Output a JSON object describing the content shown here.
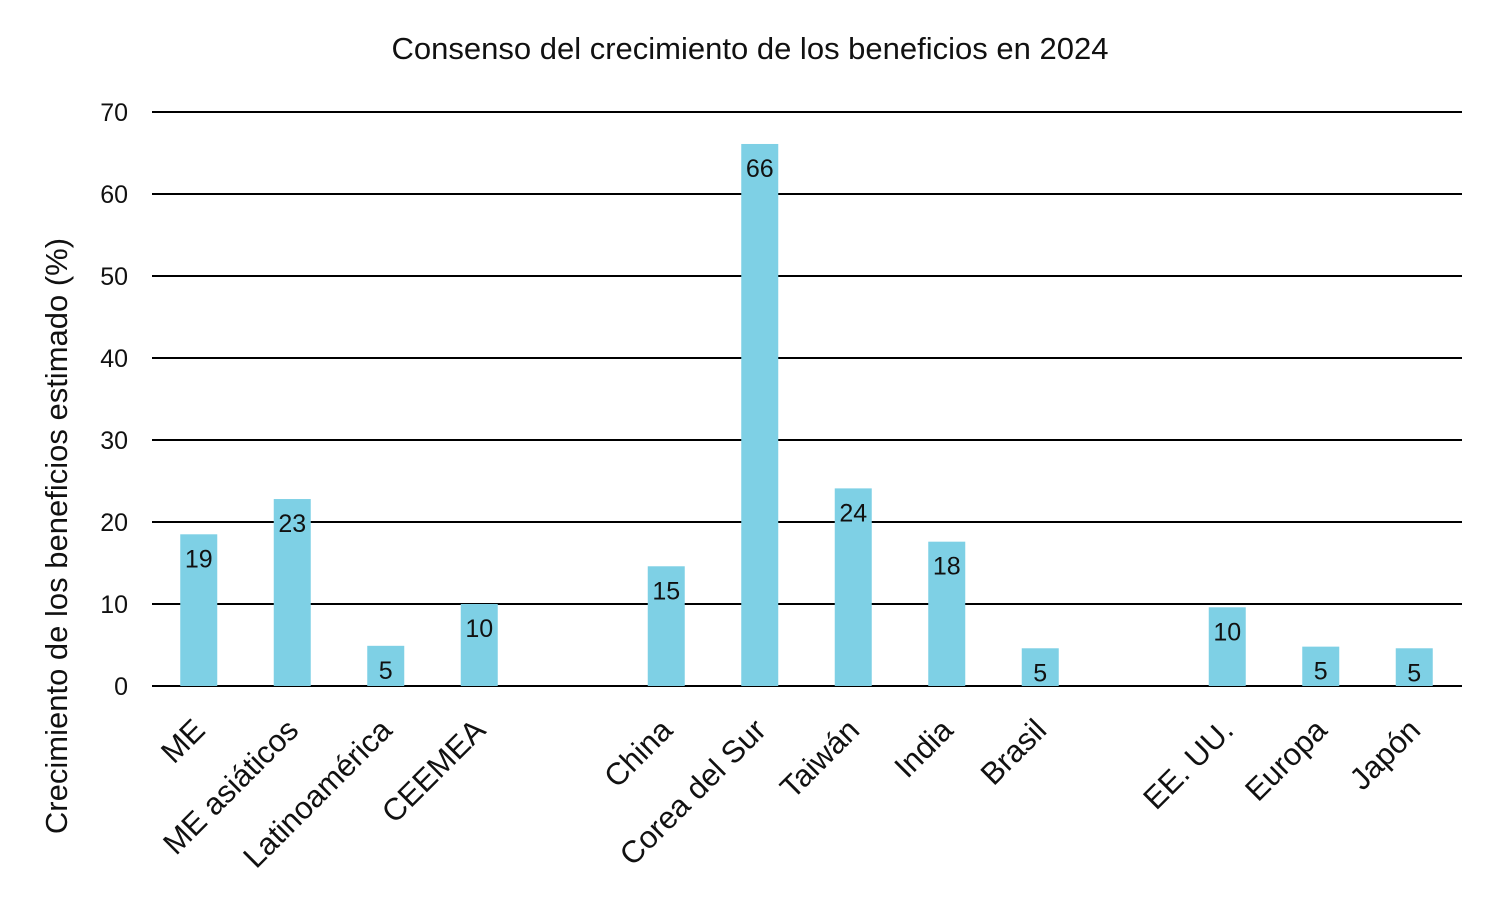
{
  "chart_data": {
    "type": "bar",
    "title": "Consenso del crecimiento de los beneficios en 2024",
    "xlabel": "",
    "ylabel": "Crecimiento de los beneficios estimado (%)",
    "ylim": [
      0,
      70
    ],
    "yticks": [
      0,
      10,
      20,
      30,
      40,
      50,
      60,
      70
    ],
    "grid": true,
    "legend": "none",
    "bar_color": "#7ED0E5",
    "categories": [
      "ME",
      "ME asiáticos",
      "Latinoamérica",
      "CEEMEA",
      "",
      "China",
      "Corea del Sur",
      "Taiwán",
      "India",
      "Brasil",
      "",
      "EE. UU.",
      "Europa",
      "Japón"
    ],
    "values": [
      18.5,
      22.8,
      4.9,
      10.0,
      null,
      14.6,
      66.1,
      24.1,
      17.6,
      4.6,
      null,
      9.6,
      4.8,
      4.6
    ],
    "data_labels": [
      "19",
      "23",
      "5",
      "10",
      "",
      "15",
      "66",
      "24",
      "18",
      "5",
      "",
      "10",
      "5",
      "5"
    ]
  }
}
